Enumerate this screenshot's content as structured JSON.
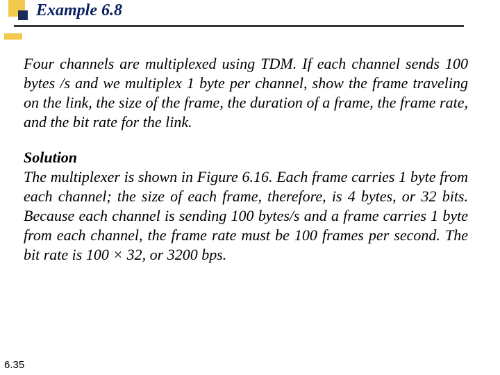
{
  "header": {
    "title": "Example 6.8",
    "colors": {
      "title_color": "#0a2060",
      "yellow": "#f2c94c",
      "dark_blue": "#1a2a5c",
      "underline": "#343434"
    }
  },
  "body": {
    "problem_text": "Four channels are multiplexed using TDM. If each channel sends 100 bytes /s and we multiplex 1 byte per channel, show the frame traveling on the link, the size of the frame, the duration of a frame, the frame rate, and the bit rate for the link.",
    "solution_label": "Solution",
    "solution_text": "The multiplexer is shown in Figure 6.16. Each frame carries 1 byte from each channel; the size of each frame, therefore, is 4 bytes, or 32 bits. Because each channel is sending 100 bytes/s and a frame carries 1 byte from each channel, the frame rate must be 100 frames per second. The bit rate is 100 × 32, or 3200 bps."
  },
  "footer": {
    "page_number": "6.35"
  },
  "typography": {
    "title_fontsize": 24,
    "body_fontsize": 22,
    "footer_fontsize": 15,
    "body_font": "Georgia, Times New Roman, serif",
    "footer_font": "Arial, Helvetica, sans-serif"
  }
}
